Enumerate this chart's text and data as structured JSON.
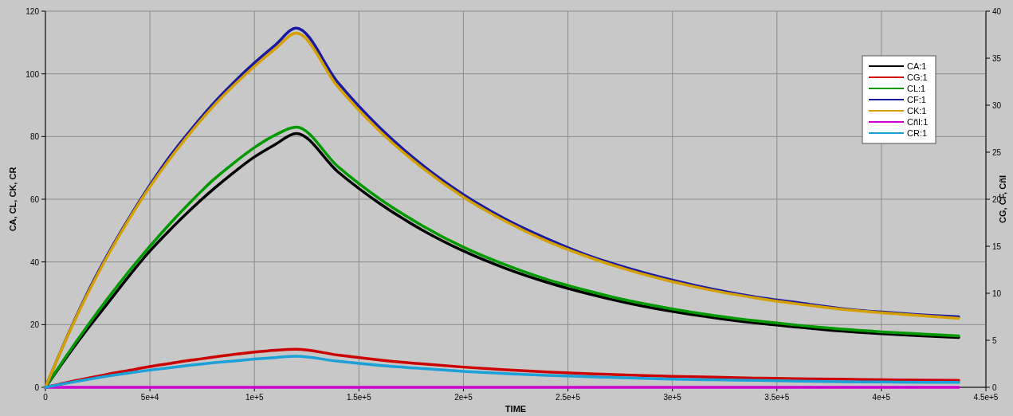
{
  "chart_data": {
    "type": "line",
    "xlabel": "TIME",
    "ylabel": "CA, CL, CK, CR",
    "y2label": "CG, CF, CñI",
    "x": [
      0,
      10000,
      20000,
      30000,
      40000,
      50000,
      60000,
      70000,
      80000,
      90000,
      100000,
      110000,
      120000,
      140000,
      160000,
      180000,
      200000,
      220000,
      240000,
      260000,
      280000,
      300000,
      320000,
      340000,
      360000,
      380000,
      400000,
      420000,
      437000
    ],
    "series": [
      {
        "name": "CA:1",
        "color": "#000000",
        "values": [
          0,
          9.5,
          18.5,
          27,
          35.5,
          43.5,
          50.5,
          57,
          63,
          68.5,
          73.5,
          77.5,
          81,
          68.7,
          58.6,
          50.3,
          43.5,
          38.0,
          33.5,
          29.8,
          26.7,
          24.2,
          22.2,
          20.5,
          19.2,
          18.0,
          17.1,
          16.4,
          15.9
        ]
      },
      {
        "name": "CG:1",
        "color": "#cc0000",
        "axis": "y2",
        "values": [
          0,
          0.5,
          0.95,
          1.4,
          1.8,
          2.2,
          2.55,
          2.9,
          3.2,
          3.5,
          3.75,
          3.95,
          4.05,
          3.43,
          2.91,
          2.49,
          2.15,
          1.87,
          1.64,
          1.45,
          1.3,
          1.17,
          1.07,
          0.98,
          0.91,
          0.86,
          0.81,
          0.77,
          0.74
        ]
      },
      {
        "name": "CL:1",
        "color": "#009900",
        "values": [
          0,
          10,
          19.5,
          28.5,
          37,
          45,
          52.5,
          59.5,
          66,
          71.5,
          76.5,
          80.5,
          83,
          70.4,
          60.1,
          51.7,
          44.7,
          39.1,
          34.4,
          30.7,
          27.5,
          25.0,
          22.9,
          21.2,
          19.8,
          18.6,
          17.7,
          17.0,
          16.4
        ]
      },
      {
        "name": "CF:1",
        "color": "#1a1aa0",
        "axis": "y2",
        "values": [
          0,
          5.2,
          10.0,
          14.2,
          18.0,
          21.5,
          24.7,
          27.5,
          30.1,
          32.4,
          34.5,
          36.4,
          38.2,
          32.4,
          27.6,
          23.7,
          20.5,
          17.9,
          15.8,
          14.0,
          12.6,
          11.4,
          10.4,
          9.6,
          9.0,
          8.4,
          8.0,
          7.7,
          7.5
        ]
      },
      {
        "name": "CK:1",
        "color": "#d4a000",
        "values": [
          0,
          15.5,
          29.6,
          42.2,
          53.6,
          64,
          73.3,
          81.7,
          89.4,
          96.2,
          102.4,
          108,
          113,
          95.8,
          81.7,
          70.2,
          60.7,
          53.0,
          46.6,
          41.5,
          37.2,
          33.7,
          30.8,
          28.5,
          26.6,
          25.0,
          23.8,
          22.8,
          22.0
        ]
      },
      {
        "name": "CñI:1",
        "color": "#cc00cc",
        "axis": "y2",
        "x": [
          0,
          437000
        ],
        "values": [
          0,
          0
        ]
      },
      {
        "name": "CR:1",
        "color": "#1ba0d8",
        "values": [
          0,
          1.3,
          2.5,
          3.6,
          4.6,
          5.5,
          6.3,
          7.1,
          7.8,
          8.4,
          9.0,
          9.5,
          9.9,
          8.3,
          7.0,
          6.0,
          5.1,
          4.4,
          3.8,
          3.4,
          3.0,
          2.6,
          2.4,
          2.2,
          2.0,
          1.8,
          1.7,
          1.6,
          1.6
        ]
      }
    ],
    "xlim": [
      0,
      450000
    ],
    "xticks": [
      0,
      {
        "value": 50000,
        "label": "5e+4"
      },
      {
        "value": 100000,
        "label": "1e+5"
      },
      {
        "value": 150000,
        "label": "1.5e+5"
      },
      {
        "value": 200000,
        "label": "2e+5"
      },
      {
        "value": 250000,
        "label": "2.5e+5"
      },
      {
        "value": 300000,
        "label": "3e+5"
      },
      {
        "value": 350000,
        "label": "3.5e+5"
      },
      {
        "value": 400000,
        "label": "4e+5"
      },
      {
        "value": 450000,
        "label": "4.5e+5"
      }
    ],
    "ylim": [
      0,
      120
    ],
    "yticks": [
      0,
      20,
      40,
      60,
      80,
      100,
      120
    ],
    "y2lim": [
      0,
      40
    ],
    "y2ticks": [
      0,
      5,
      10,
      15,
      20,
      25,
      30,
      35,
      40
    ],
    "grid": true,
    "legend": "top right",
    "marker": "none",
    "line_style": "solid"
  }
}
